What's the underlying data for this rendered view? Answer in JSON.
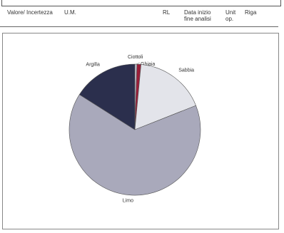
{
  "header": {
    "col_valore": "Valore/ Incertezza",
    "col_um": "U.M.",
    "col_rl": "RL",
    "col_data_line1": "Data inizio",
    "col_data_line2": "fine analisi",
    "col_unit_line1": "Unit",
    "col_unit_line2": "op.",
    "col_riga": "Riga"
  },
  "chart_data": {
    "type": "pie",
    "categories": [
      "Ciottoli",
      "Ghiaia",
      "Sabbia",
      "Limo",
      "Argilla"
    ],
    "values": [
      0.5,
      1.0,
      17.5,
      65.0,
      16.0
    ],
    "colors": [
      "#c9c9d6",
      "#9a1f3a",
      "#e3e4ea",
      "#a9a9bb",
      "#2b2f4d"
    ],
    "labels": [
      "Ciottoli",
      "Ghiaia",
      "Sabbia",
      "Limo",
      "Argilla"
    ]
  }
}
